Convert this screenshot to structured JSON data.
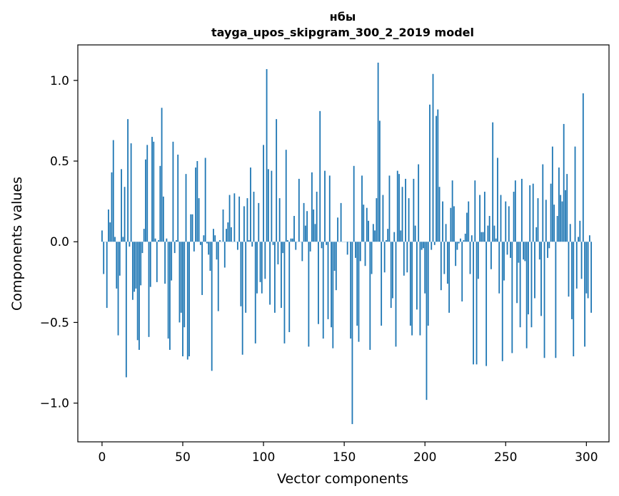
{
  "chart_data": {
    "type": "bar",
    "title": "нбы",
    "subtitle": "tayga_upos_skipgram_300_2_2019 model",
    "xlabel": "Vector components",
    "ylabel": "Components values",
    "xlim": [
      -15,
      314
    ],
    "ylim": [
      -1.24,
      1.22
    ],
    "xticks": [
      0,
      50,
      100,
      150,
      200,
      250,
      300
    ],
    "yticks": [
      -1.0,
      -0.5,
      0.0,
      0.5,
      1.0
    ],
    "ytick_labels": [
      "−1.0",
      "−0.5",
      "0.0",
      "0.5",
      "1.0"
    ],
    "grid": false,
    "legend": "none",
    "bar_color": "#1f77b4",
    "values": [
      0.07,
      -0.2,
      0.0,
      -0.41,
      0.2,
      0.12,
      0.43,
      0.63,
      0.03,
      -0.29,
      -0.58,
      -0.21,
      0.45,
      0.03,
      0.34,
      -0.84,
      0.76,
      -0.03,
      0.61,
      -0.36,
      -0.31,
      -0.29,
      -0.61,
      -0.67,
      -0.27,
      -0.07,
      0.08,
      0.51,
      0.6,
      -0.59,
      -0.28,
      0.65,
      0.62,
      0.02,
      -0.25,
      0.01,
      0.47,
      0.83,
      0.28,
      -0.26,
      0.02,
      -0.6,
      -0.67,
      -0.24,
      0.62,
      -0.07,
      0.01,
      0.54,
      -0.5,
      -0.44,
      -0.71,
      -0.53,
      0.42,
      -0.73,
      -0.71,
      0.17,
      0.17,
      -0.06,
      0.46,
      0.5,
      0.27,
      -0.02,
      -0.33,
      0.04,
      0.52,
      -0.01,
      -0.08,
      -0.18,
      -0.8,
      0.08,
      0.04,
      -0.11,
      -0.43,
      0.01,
      0.0,
      0.2,
      -0.16,
      0.08,
      0.12,
      0.29,
      0.09,
      0.0,
      0.3,
      0.0,
      -0.05,
      0.28,
      -0.4,
      -0.7,
      0.22,
      -0.44,
      0.27,
      0.01,
      0.46,
      -0.03,
      0.31,
      -0.63,
      -0.32,
      0.24,
      -0.25,
      -0.32,
      0.6,
      -0.23,
      1.07,
      0.45,
      -0.39,
      0.44,
      -0.02,
      -0.44,
      0.76,
      -0.14,
      0.27,
      -0.41,
      -0.07,
      -0.63,
      0.57,
      0.01,
      -0.56,
      0.02,
      0.02,
      0.16,
      -0.05,
      0.0,
      0.39,
      0.0,
      -0.12,
      0.24,
      0.1,
      0.19,
      -0.65,
      -0.06,
      0.43,
      0.2,
      0.11,
      0.31,
      -0.51,
      0.81,
      -0.04,
      -0.6,
      0.44,
      -0.02,
      -0.48,
      0.41,
      -0.53,
      -0.66,
      -0.18,
      -0.3,
      0.15,
      0.0,
      0.24,
      0.0,
      0.0,
      0.0,
      -0.08,
      0.0,
      -0.6,
      -1.13,
      0.47,
      -0.1,
      -0.52,
      -0.62,
      -0.12,
      0.41,
      0.23,
      -0.15,
      0.21,
      0.13,
      -0.67,
      -0.2,
      0.11,
      0.07,
      0.27,
      1.11,
      0.75,
      -0.52,
      0.29,
      -0.19,
      0.01,
      0.08,
      0.41,
      -0.41,
      -0.35,
      0.06,
      -0.65,
      0.44,
      0.42,
      0.07,
      0.34,
      -0.21,
      0.39,
      -0.19,
      0.27,
      -0.52,
      -0.58,
      0.39,
      0.1,
      -0.42,
      0.48,
      -0.58,
      -0.05,
      -0.04,
      -0.32,
      -0.98,
      -0.52,
      0.85,
      -0.05,
      1.04,
      -0.02,
      0.78,
      0.82,
      0.34,
      -0.3,
      0.25,
      -0.2,
      0.11,
      -0.26,
      -0.44,
      0.21,
      0.38,
      0.22,
      -0.15,
      -0.05,
      -0.01,
      0.02,
      -0.37,
      0.01,
      0.05,
      0.18,
      0.25,
      -0.2,
      0.04,
      -0.76,
      0.38,
      -0.76,
      -0.23,
      0.29,
      0.06,
      0.06,
      0.31,
      -0.77,
      0.1,
      0.16,
      -0.17,
      0.74,
      0.1,
      0.02,
      0.52,
      -0.32,
      0.29,
      -0.74,
      -0.24,
      0.25,
      -0.08,
      0.22,
      -0.1,
      -0.69,
      0.31,
      0.38,
      -0.38,
      -0.13,
      -0.53,
      0.39,
      -0.11,
      -0.12,
      -0.66,
      -0.45,
      0.35,
      -0.53,
      0.36,
      -0.35,
      0.09,
      0.27,
      -0.11,
      -0.46,
      0.48,
      -0.72,
      0.26,
      -0.1,
      -0.04,
      0.36,
      0.59,
      0.23,
      -0.72,
      0.16,
      0.46,
      0.29,
      0.25,
      0.73,
      0.32,
      0.42,
      -0.34,
      0.11,
      -0.48,
      -0.71,
      0.59,
      -0.29,
      0.03,
      0.13,
      -0.23,
      0.92,
      -0.65,
      -0.32,
      -0.35,
      0.04,
      -0.44
    ]
  }
}
